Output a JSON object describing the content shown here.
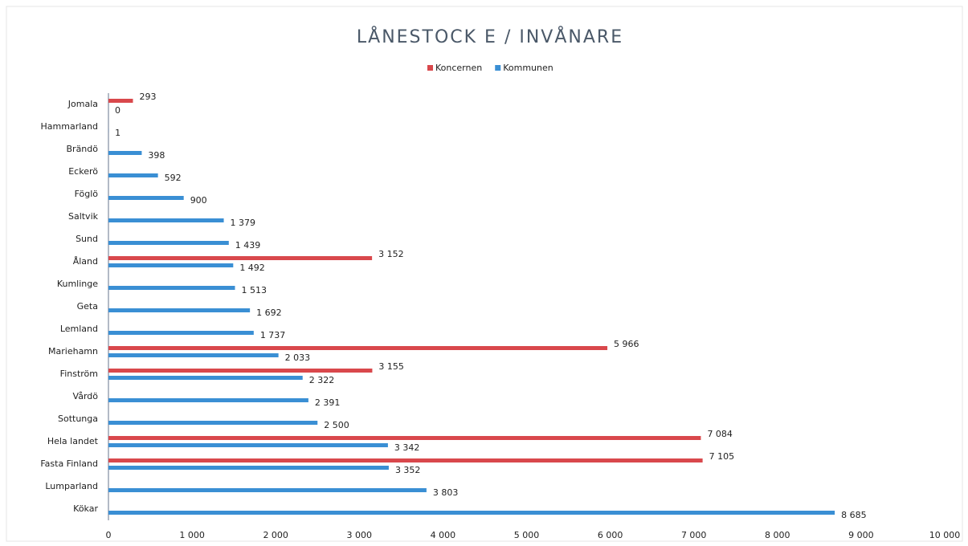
{
  "chart_data": {
    "type": "bar",
    "orientation": "horizontal",
    "title": "LÅNESTOCK E / INVÅNARE",
    "categories": [
      "Jomala",
      "Hammarland",
      "Brändö",
      "Eckerö",
      "Föglö",
      "Saltvik",
      "Sund",
      "Åland",
      "Kumlinge",
      "Geta",
      "Lemland",
      "Mariehamn",
      "Finström",
      "Vårdö",
      "Sottunga",
      "Hela landet",
      "Fasta Finland",
      "Lumparland",
      "Kökar"
    ],
    "series": [
      {
        "name": "Koncernen",
        "color": "#d9484c",
        "values": [
          293,
          null,
          null,
          null,
          null,
          null,
          null,
          3152,
          null,
          null,
          null,
          5966,
          3155,
          null,
          null,
          7084,
          7105,
          null,
          null
        ],
        "value_labels": [
          "293",
          null,
          null,
          null,
          null,
          null,
          null,
          "3 152",
          null,
          null,
          null,
          "5 966",
          "3 155",
          null,
          null,
          "7 084",
          "7 105",
          null,
          null
        ]
      },
      {
        "name": "Kommunen",
        "color": "#3a8fd4",
        "values": [
          0,
          1,
          398,
          592,
          900,
          1379,
          1439,
          1492,
          1513,
          1692,
          1737,
          2033,
          2322,
          2391,
          2500,
          3342,
          3352,
          3803,
          8685
        ],
        "value_labels": [
          "0",
          "1",
          "398",
          "592",
          "900",
          "1 379",
          "1 439",
          "1 492",
          "1 513",
          "1 692",
          "1 737",
          "2 033",
          "2 322",
          "2 391",
          "2 500",
          "3 342",
          "3 352",
          "3 803",
          "8 685"
        ]
      }
    ],
    "xlim": [
      0,
      10000
    ],
    "xticks": [
      0,
      {
        "value": 1000,
        "label": "1 000"
      },
      {
        "value": 2000,
        "label": "2 000"
      },
      {
        "value": 3000,
        "label": "3 000"
      },
      {
        "value": 4000,
        "label": "4 000"
      },
      {
        "value": 5000,
        "label": "5 000"
      },
      {
        "value": 6000,
        "label": "6 000"
      },
      {
        "value": 7000,
        "label": "7 000"
      },
      {
        "value": 8000,
        "label": "8 000"
      },
      {
        "value": 9000,
        "label": "9 000"
      },
      {
        "value": 10000,
        "label": "10 000"
      }
    ],
    "legend": "top",
    "grid": false
  }
}
